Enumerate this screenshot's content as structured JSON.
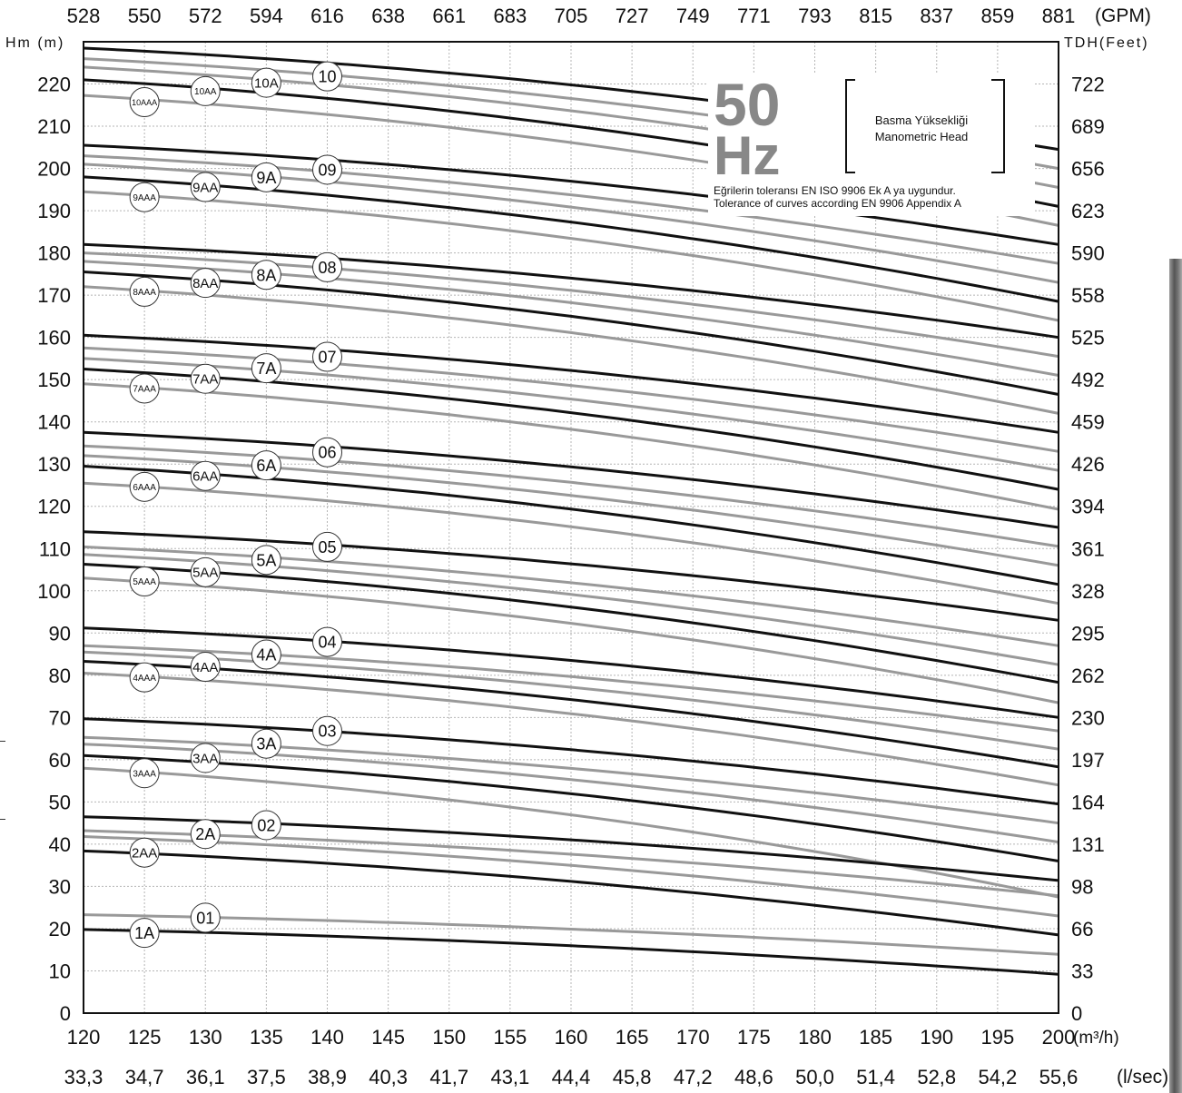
{
  "chart_data": {
    "type": "line",
    "frequency_label": "50",
    "frequency_unit": "Hz",
    "legend_box": [
      "Basma Yüksekliği",
      "Manometric Head"
    ],
    "notes": [
      "Eğrilerin toleransı  EN ISO  9906 Ek A  ya uygundur.",
      "Tolerance of  curves according EN  9906 Appendix A"
    ],
    "left_axis_label": "Hm (m)",
    "right_axis_label": "TDH(Feet)",
    "top_axis_unit": "(GPM)",
    "bottom_axis_unit": "(m³/h)",
    "bottom_axis2_unit": "(l/sec)",
    "xlim": [
      120,
      200
    ],
    "ylim": [
      0,
      230
    ],
    "x_ticks": [
      "120",
      "125",
      "130",
      "135",
      "140",
      "145",
      "150",
      "155",
      "160",
      "165",
      "170",
      "175",
      "180",
      "185",
      "190",
      "195",
      "200"
    ],
    "gpm_ticks": [
      "528",
      "550",
      "572",
      "594",
      "616",
      "638",
      "661",
      "683",
      "705",
      "727",
      "749",
      "771",
      "793",
      "815",
      "837",
      "859",
      "881"
    ],
    "lsec_ticks": [
      "33,3",
      "34,7",
      "36,1",
      "37,5",
      "38,9",
      "40,3",
      "41,7",
      "43,1",
      "44,4",
      "45,8",
      "47,2",
      "48,6",
      "50,0",
      "51,4",
      "52,8",
      "54,2",
      "55,6"
    ],
    "y_ticks": [
      "0",
      "10",
      "20",
      "30",
      "40",
      "50",
      "60",
      "70",
      "80",
      "90",
      "100",
      "110",
      "120",
      "130",
      "140",
      "150",
      "160",
      "170",
      "180",
      "190",
      "200",
      "210",
      "220"
    ],
    "feet_ticks": [
      "0",
      "33",
      "66",
      "98",
      "131",
      "164",
      "197",
      "230",
      "262",
      "295",
      "328",
      "361",
      "394",
      "426",
      "459",
      "492",
      "525",
      "558",
      "590",
      "623",
      "656",
      "689",
      "722"
    ],
    "series": [
      {
        "name": "1A",
        "color": "#111111",
        "x": [
          120,
          200
        ],
        "y": [
          19.8,
          9.2
        ]
      },
      {
        "name": "01",
        "color": "#999999",
        "x": [
          120,
          200
        ],
        "y": [
          23.3,
          13.9
        ]
      },
      {
        "name": "2AA",
        "color": "#111111",
        "x": [
          120,
          200
        ],
        "y": [
          38.4,
          18.5
        ]
      },
      {
        "name": "",
        "color": "#999999",
        "x": [
          120,
          200
        ],
        "y": [
          41.8,
          23.0
        ]
      },
      {
        "name": "2A",
        "color": "#999999",
        "x": [
          120,
          200
        ],
        "y": [
          43.2,
          27.8
        ]
      },
      {
        "name": "02",
        "color": "#111111",
        "x": [
          120,
          200
        ],
        "y": [
          46.5,
          31.4
        ]
      },
      {
        "name": "3AAA",
        "color": "#999999",
        "x": [
          120,
          200
        ],
        "y": [
          58.0,
          27.5
        ]
      },
      {
        "name": "3AA",
        "color": "#111111",
        "x": [
          120,
          200
        ],
        "y": [
          61.0,
          36.0
        ]
      },
      {
        "name": "",
        "color": "#999999",
        "x": [
          120,
          200
        ],
        "y": [
          63.7,
          40.5
        ]
      },
      {
        "name": "3A",
        "color": "#999999",
        "x": [
          120,
          200
        ],
        "y": [
          65.3,
          45.0
        ]
      },
      {
        "name": "03",
        "color": "#111111",
        "x": [
          120,
          200
        ],
        "y": [
          69.7,
          49.5
        ]
      },
      {
        "name": "4AAA",
        "color": "#999999",
        "x": [
          120,
          200
        ],
        "y": [
          80.5,
          54.0
        ]
      },
      {
        "name": "4AA",
        "color": "#111111",
        "x": [
          120,
          200
        ],
        "y": [
          83.3,
          58.3
        ]
      },
      {
        "name": "",
        "color": "#999999",
        "x": [
          120,
          200
        ],
        "y": [
          85.5,
          62.5
        ]
      },
      {
        "name": "4A",
        "color": "#999999",
        "x": [
          120,
          200
        ],
        "y": [
          87.0,
          66.8
        ]
      },
      {
        "name": "04",
        "color": "#111111",
        "x": [
          120,
          200
        ],
        "y": [
          91.2,
          70.0
        ]
      },
      {
        "name": "5AAA",
        "color": "#999999",
        "x": [
          120,
          200
        ],
        "y": [
          103.0,
          73.5
        ]
      },
      {
        "name": "5AA",
        "color": "#111111",
        "x": [
          120,
          200
        ],
        "y": [
          106.3,
          78.3
        ]
      },
      {
        "name": "",
        "color": "#999999",
        "x": [
          120,
          200
        ],
        "y": [
          108.6,
          82.5
        ]
      },
      {
        "name": "5A",
        "color": "#999999",
        "x": [
          120,
          200
        ],
        "y": [
          110.4,
          87.0
        ]
      },
      {
        "name": "05",
        "color": "#111111",
        "x": [
          120,
          200
        ],
        "y": [
          114.0,
          93.0
        ]
      },
      {
        "name": "6AAA",
        "color": "#999999",
        "x": [
          120,
          200
        ],
        "y": [
          125.5,
          97.0
        ]
      },
      {
        "name": "6AA",
        "color": "#111111",
        "x": [
          120,
          200
        ],
        "y": [
          129.5,
          101.5
        ]
      },
      {
        "name": "",
        "color": "#999999",
        "x": [
          120,
          200
        ],
        "y": [
          132.0,
          106.0
        ]
      },
      {
        "name": "6A",
        "color": "#999999",
        "x": [
          120,
          200
        ],
        "y": [
          134.3,
          110.5
        ]
      },
      {
        "name": "06",
        "color": "#111111",
        "x": [
          120,
          200
        ],
        "y": [
          137.5,
          115.0
        ]
      },
      {
        "name": "7AAA",
        "color": "#999999",
        "x": [
          120,
          200
        ],
        "y": [
          149.0,
          119.3
        ]
      },
      {
        "name": "7AA",
        "color": "#111111",
        "x": [
          120,
          200
        ],
        "y": [
          152.5,
          124.0
        ]
      },
      {
        "name": "",
        "color": "#999999",
        "x": [
          120,
          200
        ],
        "y": [
          155.0,
          128.5
        ]
      },
      {
        "name": "7A",
        "color": "#999999",
        "x": [
          120,
          200
        ],
        "y": [
          157.5,
          133.0
        ]
      },
      {
        "name": "07",
        "color": "#111111",
        "x": [
          120,
          200
        ],
        "y": [
          160.5,
          137.5
        ]
      },
      {
        "name": "8AAA",
        "color": "#999999",
        "x": [
          120,
          200
        ],
        "y": [
          172.0,
          142.0
        ]
      },
      {
        "name": "8AA",
        "color": "#111111",
        "x": [
          120,
          200
        ],
        "y": [
          175.5,
          146.5
        ]
      },
      {
        "name": "",
        "color": "#999999",
        "x": [
          120,
          200
        ],
        "y": [
          178.0,
          151.0
        ]
      },
      {
        "name": "8A",
        "color": "#999999",
        "x": [
          120,
          200
        ],
        "y": [
          180.0,
          155.5
        ]
      },
      {
        "name": "08",
        "color": "#111111",
        "x": [
          120,
          200
        ],
        "y": [
          182.0,
          160.0
        ]
      },
      {
        "name": "9AAA",
        "color": "#999999",
        "x": [
          120,
          200
        ],
        "y": [
          194.5,
          164.0
        ]
      },
      {
        "name": "9AA",
        "color": "#111111",
        "x": [
          120,
          200
        ],
        "y": [
          198.0,
          168.5
        ]
      },
      {
        "name": "",
        "color": "#999999",
        "x": [
          120,
          200
        ],
        "y": [
          201.0,
          173.0
        ]
      },
      {
        "name": "9A",
        "color": "#999999",
        "x": [
          120,
          200
        ],
        "y": [
          203.0,
          177.5
        ]
      },
      {
        "name": "09",
        "color": "#111111",
        "x": [
          120,
          200
        ],
        "y": [
          205.5,
          182.0
        ]
      },
      {
        "name": "10AAA",
        "color": "#999999",
        "x": [
          120,
          200
        ],
        "y": [
          217.3,
          186.5
        ]
      },
      {
        "name": "10AA",
        "color": "#111111",
        "x": [
          120,
          200
        ],
        "y": [
          221.0,
          191.0
        ]
      },
      {
        "name": "",
        "color": "#999999",
        "x": [
          120,
          200
        ],
        "y": [
          224.0,
          195.5
        ]
      },
      {
        "name": "10A",
        "color": "#999999",
        "x": [
          120,
          200
        ],
        "y": [
          226.0,
          200.0
        ]
      },
      {
        "name": "10",
        "color": "#111111",
        "x": [
          120,
          200
        ],
        "y": [
          228.5,
          204.5
        ]
      }
    ],
    "curve_labels": [
      {
        "text": "1A",
        "x": 125,
        "y": 19.0
      },
      {
        "text": "01",
        "x": 130,
        "y": 22.6
      },
      {
        "text": "2AA",
        "x": 125,
        "y": 38.0
      },
      {
        "text": "2A",
        "x": 130,
        "y": 42.4
      },
      {
        "text": "02",
        "x": 135,
        "y": 44.5
      },
      {
        "text": "3AAA",
        "x": 125,
        "y": 56.8
      },
      {
        "text": "3AA",
        "x": 130,
        "y": 60.4
      },
      {
        "text": "3A",
        "x": 135,
        "y": 63.8
      },
      {
        "text": "03",
        "x": 140,
        "y": 66.8
      },
      {
        "text": "4AAA",
        "x": 125,
        "y": 79.5
      },
      {
        "text": "4AA",
        "x": 130,
        "y": 82.0
      },
      {
        "text": "4A",
        "x": 135,
        "y": 84.9
      },
      {
        "text": "04",
        "x": 140,
        "y": 87.9
      },
      {
        "text": "5AAA",
        "x": 125,
        "y": 102.2
      },
      {
        "text": "5AA",
        "x": 130,
        "y": 104.4
      },
      {
        "text": "5A",
        "x": 135,
        "y": 107.3
      },
      {
        "text": "05",
        "x": 140,
        "y": 110.4
      },
      {
        "text": "6AAA",
        "x": 125,
        "y": 124.6
      },
      {
        "text": "6AA",
        "x": 130,
        "y": 127.2
      },
      {
        "text": "6A",
        "x": 135,
        "y": 129.7
      },
      {
        "text": "06",
        "x": 140,
        "y": 132.8
      },
      {
        "text": "7AAA",
        "x": 125,
        "y": 147.9
      },
      {
        "text": "7AA",
        "x": 130,
        "y": 150.2
      },
      {
        "text": "7A",
        "x": 135,
        "y": 152.7
      },
      {
        "text": "07",
        "x": 140,
        "y": 155.4
      },
      {
        "text": "8AAA",
        "x": 125,
        "y": 170.8
      },
      {
        "text": "8AA",
        "x": 130,
        "y": 172.9
      },
      {
        "text": "8A",
        "x": 135,
        "y": 174.8
      },
      {
        "text": "08",
        "x": 140,
        "y": 176.6
      },
      {
        "text": "9AAA",
        "x": 125,
        "y": 193.2
      },
      {
        "text": "9AA",
        "x": 130,
        "y": 195.6
      },
      {
        "text": "9A",
        "x": 135,
        "y": 197.9
      },
      {
        "text": "09",
        "x": 140,
        "y": 199.7
      },
      {
        "text": "10AAA",
        "x": 125,
        "y": 215.7
      },
      {
        "text": "10AA",
        "x": 130,
        "y": 218.3
      },
      {
        "text": "10A",
        "x": 135,
        "y": 220.3
      },
      {
        "text": "10",
        "x": 140,
        "y": 221.8
      }
    ],
    "grid": true
  }
}
